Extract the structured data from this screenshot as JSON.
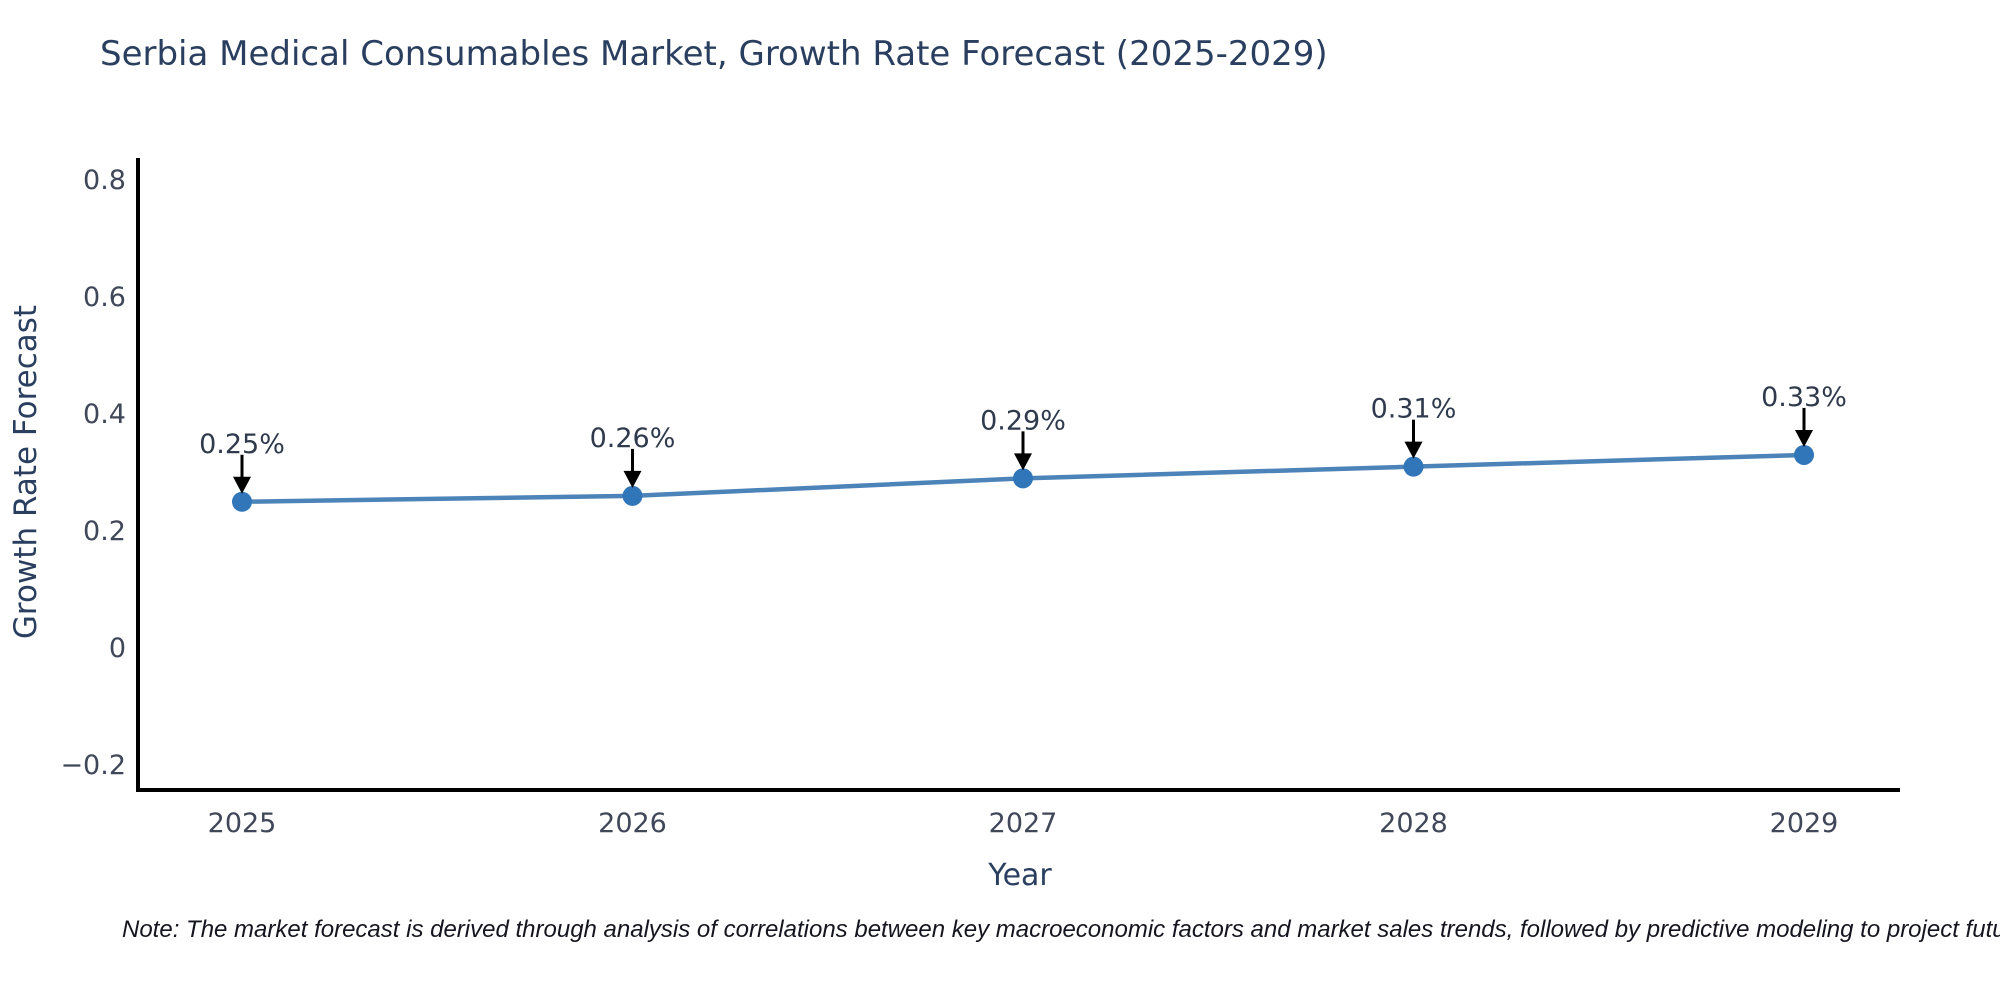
{
  "page": {
    "note": "Note: The market forecast is derived through analysis of correlations between key macroeconomic factors and market sales trends, followed by predictive modeling to project future sales."
  },
  "chart_data": {
    "type": "line",
    "title": "Serbia Medical Consumables Market, Growth Rate Forecast (2025-2029)",
    "xlabel": "Year",
    "ylabel": "Growth Rate Forecast",
    "x": [
      "2025",
      "2026",
      "2027",
      "2028",
      "2029"
    ],
    "values": [
      0.25,
      0.26,
      0.29,
      0.31,
      0.33
    ],
    "point_labels": [
      "0.25%",
      "0.26%",
      "0.29%",
      "0.31%",
      "0.33%"
    ],
    "yticks": [
      {
        "value": 0.8,
        "label": "0.8"
      },
      {
        "value": 0.6,
        "label": "0.6"
      },
      {
        "value": 0.4,
        "label": "0.4"
      },
      {
        "value": 0.2,
        "label": "0.2"
      },
      {
        "value": 0,
        "label": "0"
      },
      {
        "value": -0.2,
        "label": "−0.2"
      }
    ],
    "ylim": [
      -0.246,
      0.838
    ],
    "grid": false,
    "legend_position": "none",
    "annotation_arrows": true,
    "colors": {
      "line": "#4c83b8",
      "marker": "#3076b8",
      "axis": "#000000",
      "heading_text": "#2a3f5f",
      "tick_text": "#3f4759",
      "annotation_text": "#2f3a4d",
      "arrow": "#000000",
      "background": "#ffffff"
    }
  }
}
